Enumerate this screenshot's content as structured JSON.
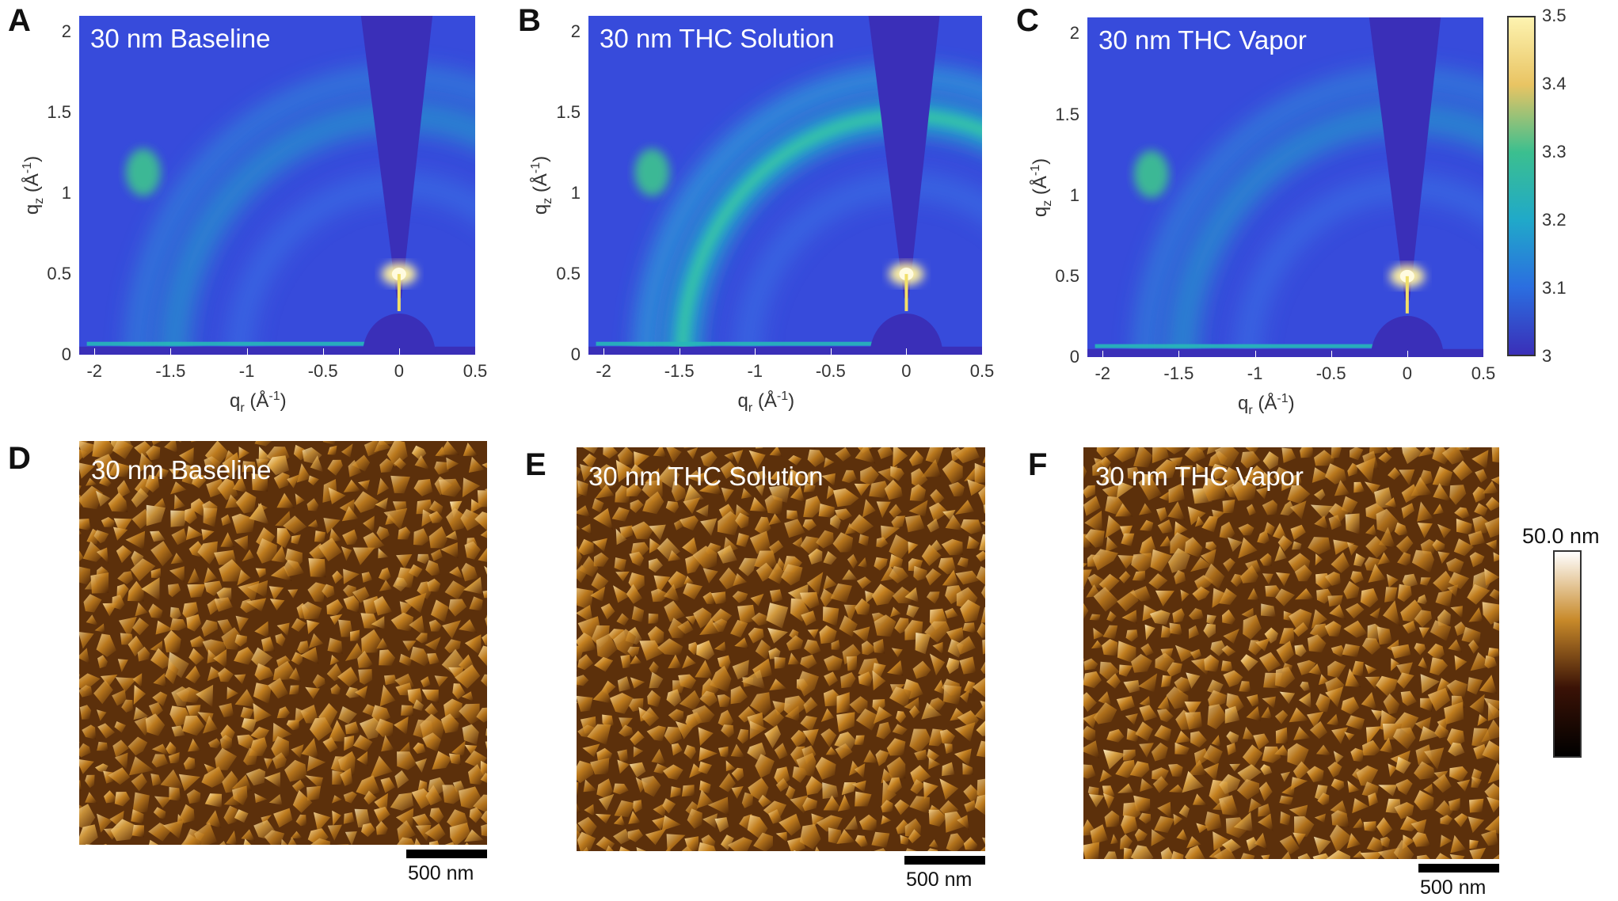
{
  "panels_top": [
    {
      "letter": "A",
      "title": "30 nm Baseline"
    },
    {
      "letter": "B",
      "title": "30 nm THC Solution"
    },
    {
      "letter": "C",
      "title": "30 nm THC Vapor"
    }
  ],
  "panels_bottom": [
    {
      "letter": "D",
      "title": "30 nm Baseline",
      "scale": "500 nm"
    },
    {
      "letter": "E",
      "title": "30 nm THC Solution",
      "scale": "500 nm"
    },
    {
      "letter": "F",
      "title": "30 nm THC Vapor",
      "scale": "500 nm"
    }
  ],
  "axes": {
    "x_ticks": [
      "-2",
      "-1.5",
      "-1",
      "-0.5",
      "0",
      "0.5"
    ],
    "y_ticks": [
      "0",
      "0.5",
      "1",
      "1.5",
      "2"
    ],
    "xlabel_base": "q",
    "xlabel_sub": "r",
    "xlabel_unit": " (Å",
    "xlabel_exp": "-1",
    "xlabel_close": ")",
    "ylabel_base": "q",
    "ylabel_sub": "z",
    "ylabel_unit": " (Å",
    "ylabel_exp": "-1",
    "ylabel_close": ")"
  },
  "giwaxs_colorbar": {
    "ticks": [
      "3.5",
      "3.4",
      "3.3",
      "3.2",
      "3.1",
      "3"
    ],
    "colors": [
      "#fdf3b0",
      "#e9c463",
      "#3bbf8f",
      "#20a9c9",
      "#2b6ee0",
      "#3a2fb8"
    ]
  },
  "afm_colorbar": {
    "label": "50.0 nm",
    "colors": [
      "#ffffff",
      "#c88a2a",
      "#3a1206",
      "#000000"
    ]
  },
  "chart_data": [
    {
      "type": "heatmap",
      "title": "30 nm Baseline",
      "xlabel": "qr (Å-1)",
      "ylabel": "qz (Å-1)",
      "xlim": [
        -2.1,
        0.5
      ],
      "ylim": [
        0,
        2.1
      ]
    },
    {
      "type": "heatmap",
      "title": "30 nm THC Solution",
      "xlabel": "qr (Å-1)",
      "ylabel": "qz (Å-1)",
      "xlim": [
        -2.1,
        0.5
      ],
      "ylim": [
        0,
        2.1
      ]
    },
    {
      "type": "heatmap",
      "title": "30 nm THC Vapor",
      "xlabel": "qr (Å-1)",
      "ylabel": "qz (Å-1)",
      "xlim": [
        -2.1,
        0.5
      ],
      "ylim": [
        0,
        2.1
      ]
    }
  ]
}
